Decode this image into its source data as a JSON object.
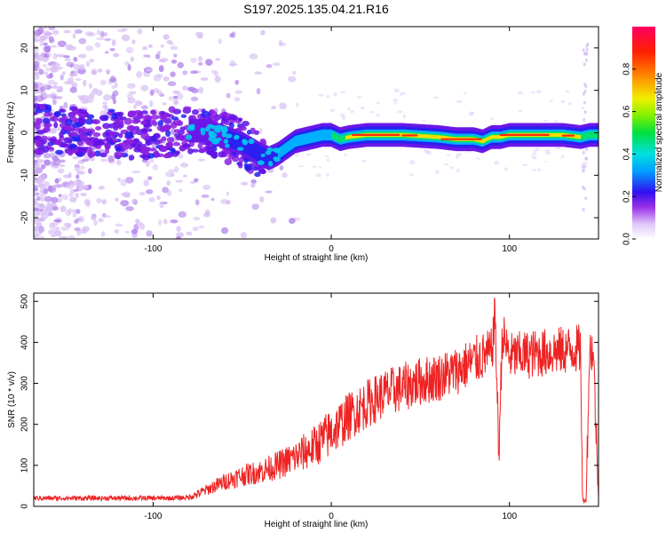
{
  "title": "S197.2025.135.04.21.R16",
  "chart_data": [
    {
      "type": "heatmap",
      "xlabel": "Height of straight line (km)",
      "ylabel": "Frequency (Hz)",
      "xlim": [
        -167,
        150
      ],
      "ylim": [
        -25,
        25
      ],
      "xticks": [
        -100,
        0,
        100
      ],
      "yticks": [
        -20,
        -10,
        0,
        10,
        20
      ],
      "ridge": {
        "x": [
          -167,
          -150,
          -130,
          -110,
          -90,
          -80,
          -70,
          -60,
          -50,
          -40,
          -35,
          -30,
          -25,
          -20,
          -15,
          -10,
          -5,
          0,
          5,
          10,
          20,
          40,
          60,
          70,
          75,
          80,
          85,
          90,
          95,
          100,
          110,
          120,
          130,
          140,
          145,
          150
        ],
        "y": [
          1,
          0.5,
          0,
          -0.5,
          0,
          0.5,
          0.5,
          -1,
          -2.5,
          -5,
          -6,
          -5,
          -3.5,
          -2,
          -1.5,
          -1,
          -0.5,
          -0.5,
          -1.5,
          -1,
          -0.5,
          -0.5,
          -1,
          -1.5,
          -1.5,
          -1.5,
          -2,
          -1,
          -1,
          -0.5,
          -0.5,
          -0.5,
          -0.5,
          -1,
          -0.5,
          -0.5
        ]
      },
      "colorbar": {
        "label": "Normalized spectral amplitude",
        "range": [
          0,
          1
        ],
        "ticks": [
          "0.0",
          "0.2",
          "0.4",
          "0.6",
          "0.8"
        ],
        "tick_values": [
          0,
          0.2,
          0.4,
          0.6,
          0.8
        ]
      }
    },
    {
      "type": "line",
      "xlabel": "Height of straight line (km)",
      "ylabel": "SNR (10 * v/v)",
      "xlim": [
        -167,
        150
      ],
      "ylim": [
        0,
        520
      ],
      "xticks": [
        -100,
        0,
        100
      ],
      "yticks": [
        0,
        100,
        200,
        300,
        400,
        500
      ],
      "grid": false,
      "series": [
        {
          "color": "#ee2222",
          "x": [
            -167,
            -150,
            -130,
            -110,
            -90,
            -80,
            -75,
            -70,
            -60,
            -50,
            -40,
            -30,
            -20,
            -10,
            0,
            10,
            20,
            30,
            40,
            50,
            60,
            70,
            80,
            90,
            92,
            94,
            96,
            100,
            110,
            120,
            130,
            140,
            141,
            143,
            145,
            147,
            150
          ],
          "values": [
            20,
            20,
            20,
            20,
            20,
            22,
            30,
            40,
            60,
            75,
            85,
            100,
            120,
            145,
            180,
            220,
            250,
            275,
            290,
            305,
            315,
            330,
            355,
            375,
            470,
            120,
            420,
            365,
            370,
            375,
            380,
            385,
            15,
            15,
            380,
            385,
            20
          ]
        }
      ]
    }
  ]
}
